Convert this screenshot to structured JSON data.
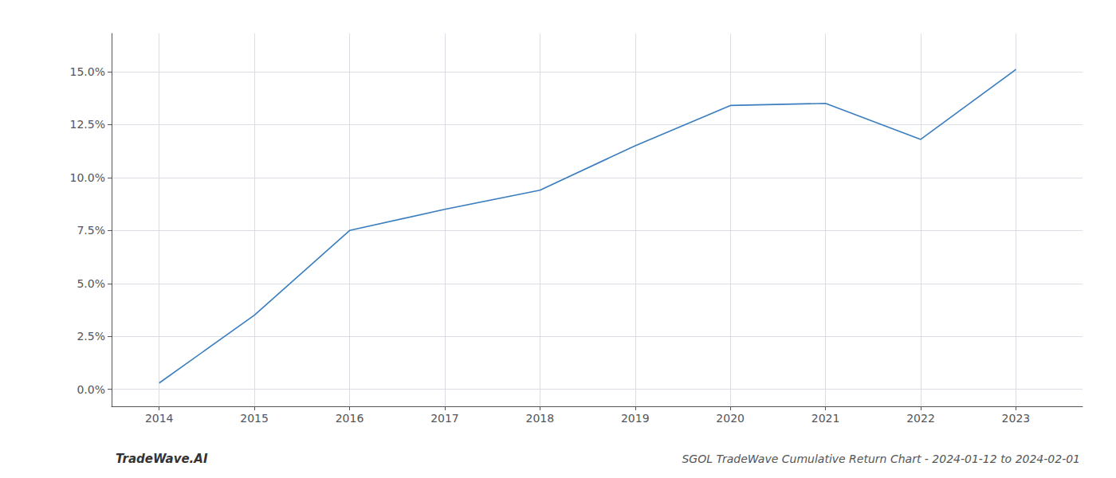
{
  "chart_data": {
    "type": "line",
    "title": "SGOL TradeWave Cumulative Return Chart - 2024-01-12 to 2024-02-01",
    "annotations": [
      "TradeWave.AI"
    ],
    "x": [
      2014,
      2015,
      2016,
      2017,
      2018,
      2019,
      2020,
      2021,
      2022,
      2023
    ],
    "values": [
      0.003,
      0.035,
      0.075,
      0.085,
      0.094,
      0.115,
      0.134,
      0.135,
      0.118,
      0.151
    ],
    "color": "#3a7ebf",
    "xlim": [
      2013.5,
      2023.7
    ],
    "xticks": [
      2014,
      2015,
      2016,
      2017,
      2018,
      2019,
      2020,
      2021,
      2022,
      2023
    ],
    "ylim": [
      -0.008,
      0.168
    ],
    "yticks": [
      {
        "value": 0.0,
        "label": "0.0%"
      },
      {
        "value": 0.025,
        "label": "2.5%"
      },
      {
        "value": 0.05,
        "label": "5.0%"
      },
      {
        "value": 0.075,
        "label": "7.5%"
      },
      {
        "value": 0.1,
        "label": "10.0%"
      },
      {
        "value": 0.125,
        "label": "12.5%"
      },
      {
        "value": 0.15,
        "label": "15.0%"
      }
    ],
    "grid": true
  }
}
